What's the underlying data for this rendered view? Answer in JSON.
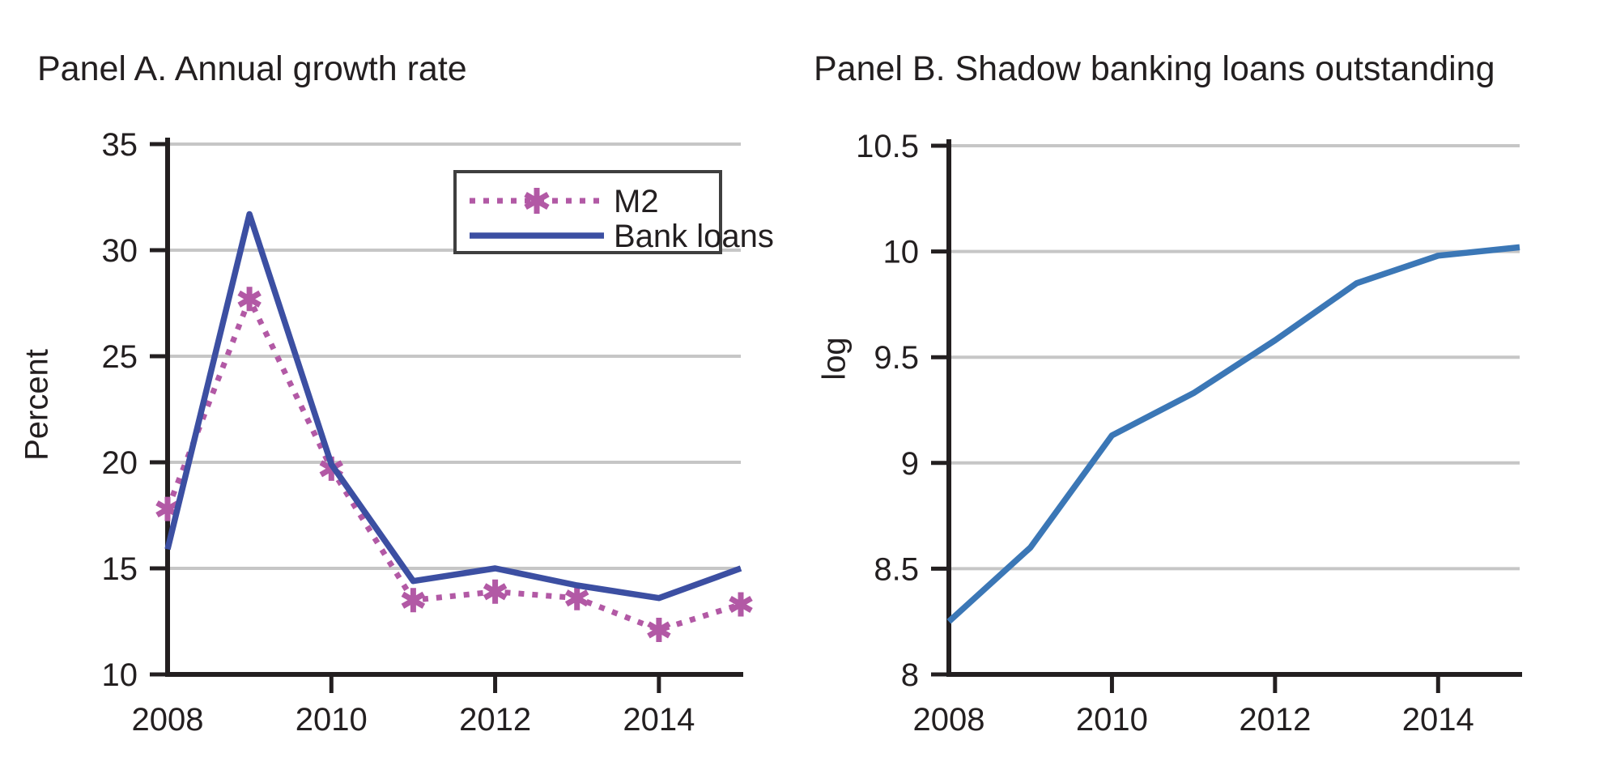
{
  "figure": {
    "background": "#ffffff",
    "text_color": "#231f20"
  },
  "colors": {
    "grid": "#c6c6c6",
    "axis": "#231f20",
    "legend_border": "#3f3f3f",
    "panel_a_bank_loans": "#3c4fa2",
    "panel_a_m2": "#b259a5",
    "panel_b_line": "#3b77b6"
  },
  "chart_data": [
    {
      "type": "line",
      "title": "Panel A. Annual growth rate",
      "ylabel": "Percent",
      "xlabel": "",
      "x": [
        2008,
        2009,
        2010,
        2011,
        2012,
        2013,
        2014,
        2015
      ],
      "series": [
        {
          "name": "M2",
          "values": [
            17.8,
            27.7,
            19.7,
            13.5,
            13.9,
            13.6,
            12.1,
            13.3
          ],
          "color": "#b259a5",
          "line_style": "dotted",
          "marker": "asterisk"
        },
        {
          "name": "Bank loans",
          "values": [
            15.9,
            31.7,
            19.9,
            14.4,
            15.0,
            14.2,
            13.6,
            15.0
          ],
          "color": "#3c4fa2",
          "line_style": "solid",
          "marker": "none"
        }
      ],
      "xlim": [
        2008,
        2015
      ],
      "ylim": [
        10,
        35
      ],
      "yticks": [
        10,
        15,
        20,
        25,
        30,
        35
      ],
      "xtick_marks": [
        2010,
        2012,
        2014
      ],
      "xtick_labels": [
        2008,
        2010,
        2012,
        2014
      ],
      "grid": true,
      "legend": {
        "visible": true,
        "position": "upper-right-inside",
        "entries": [
          "M2",
          "Bank loans"
        ]
      }
    },
    {
      "type": "line",
      "title": "Panel B. Shadow banking loans outstanding",
      "ylabel": "log",
      "xlabel": "",
      "x": [
        2008,
        2009,
        2010,
        2011,
        2012,
        2013,
        2014,
        2015
      ],
      "series": [
        {
          "name": "Shadow banking loans outstanding",
          "values": [
            8.25,
            8.6,
            9.13,
            9.33,
            9.58,
            9.85,
            9.98,
            10.02
          ],
          "color": "#3b77b6",
          "line_style": "solid",
          "marker": "none"
        }
      ],
      "xlim": [
        2008,
        2015
      ],
      "ylim": [
        8,
        10.5
      ],
      "yticks": [
        8,
        8.5,
        9,
        9.5,
        10,
        10.5
      ],
      "xtick_marks": [
        2010,
        2012,
        2014
      ],
      "xtick_labels": [
        2008,
        2010,
        2012,
        2014
      ],
      "grid": true,
      "legend": {
        "visible": false
      }
    }
  ]
}
